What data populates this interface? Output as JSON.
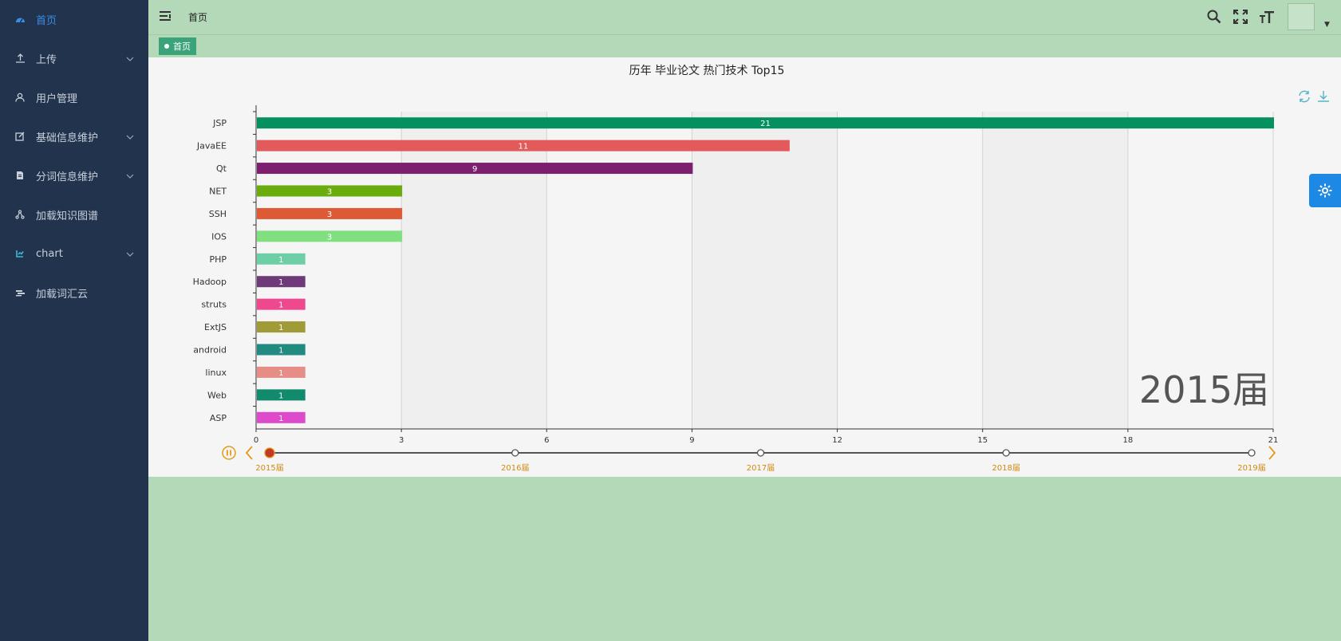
{
  "sidebar": {
    "items": [
      {
        "label": "首页",
        "icon": "dashboard-icon",
        "active": true,
        "has_arrow": false
      },
      {
        "label": "上传",
        "icon": "upload-icon",
        "active": false,
        "has_arrow": true
      },
      {
        "label": "用户管理",
        "icon": "user-icon",
        "active": false,
        "has_arrow": false
      },
      {
        "label": "基础信息维护",
        "icon": "edit-icon",
        "active": false,
        "has_arrow": true
      },
      {
        "label": "分词信息维护",
        "icon": "document-icon",
        "active": false,
        "has_arrow": true
      },
      {
        "label": "加载知识图谱",
        "icon": "graph-icon",
        "active": false,
        "has_arrow": false
      },
      {
        "label": "chart",
        "icon": "chart-icon",
        "active": false,
        "has_arrow": true
      },
      {
        "label": "加载词汇云",
        "icon": "cloud-icon",
        "active": false,
        "has_arrow": false
      }
    ]
  },
  "header": {
    "breadcrumb": "首页",
    "icons": [
      "search-icon",
      "fullscreen-icon",
      "font-size-icon"
    ]
  },
  "tags": {
    "home": "首页"
  },
  "colors": {
    "sidebar_bg": "#22334d",
    "active": "#3a8ee6",
    "page_bg": "#b3d9b8",
    "timeline_accent": "#e39a1b"
  },
  "chart_data": {
    "type": "bar",
    "orientation": "horizontal",
    "title": "历年 毕业论文 热门技术 Top15",
    "categories": [
      "JSP",
      "JavaEE",
      "Qt",
      "NET",
      "SSH",
      "IOS",
      "PHP",
      "Hadoop",
      "struts",
      "ExtJS",
      "android",
      "linux",
      "Web",
      "ASP"
    ],
    "values": [
      21,
      11,
      9,
      3,
      3,
      3,
      1,
      1,
      1,
      1,
      1,
      1,
      1,
      1
    ],
    "bar_colors": [
      "#05905f",
      "#e25a5a",
      "#7b1f6e",
      "#6aab0e",
      "#dd5a34",
      "#80e080",
      "#6ecfa7",
      "#6f3a7a",
      "#f0488e",
      "#a09a37",
      "#218a81",
      "#e68d87",
      "#128a6e",
      "#dd4acb"
    ],
    "xlim": [
      0,
      21
    ],
    "xticks": [
      0,
      3,
      6,
      9,
      12,
      15,
      18,
      21
    ],
    "grid": true,
    "watermark": "2015届",
    "timeline": {
      "labels": [
        "2015届",
        "2016届",
        "2017届",
        "2018届",
        "2019届"
      ],
      "current": 0
    }
  }
}
